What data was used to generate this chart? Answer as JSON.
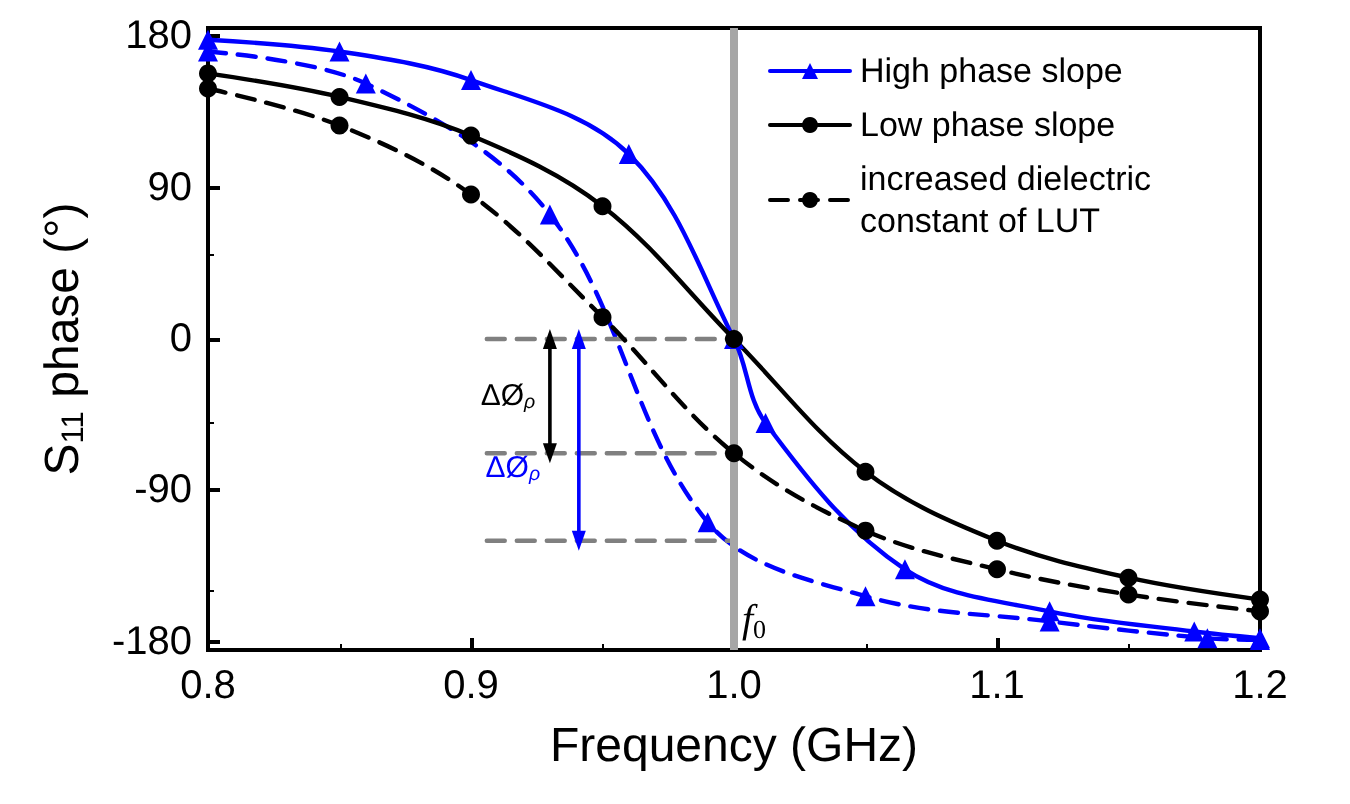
{
  "chart_data": {
    "type": "line",
    "xlabel": "Frequency (GHz)",
    "ylabel": "S$_{11}$ phase (°)",
    "xlim": [
      0.8,
      1.2
    ],
    "xticks": [
      0.8,
      0.9,
      {
        "value": 1,
        "label": "1.0"
      },
      1.1,
      1.2
    ],
    "ylim": [
      -185,
      185
    ],
    "yticks": [
      -180,
      -90,
      0,
      90,
      180
    ],
    "grid": false,
    "legend": "top right",
    "series": [
      {
        "name": "High phase slope",
        "color": "#0000ff",
        "marker": "triangle",
        "line_style": "solid",
        "x": [
          0.8,
          0.85,
          0.9,
          0.96,
          1.0,
          1.012,
          1.065,
          1.12,
          1.175,
          1.2
        ],
        "values": [
          178,
          171,
          154,
          110,
          0,
          -50,
          -137,
          -162,
          -174,
          -178
        ]
      },
      {
        "name": "Low phase slope",
        "color": "#000000",
        "marker": "circle",
        "line_style": "solid",
        "x": [
          0.8,
          0.85,
          0.9,
          0.95,
          1.0,
          1.05,
          1.1,
          1.15,
          1.2
        ],
        "values": [
          158,
          144,
          121,
          79,
          0,
          -79,
          -120,
          -142,
          -155
        ]
      },
      {
        "name": "increased dielectric constant of LUT",
        "color": "#000000",
        "marker": "circle",
        "line_style": "dashed",
        "x": [
          0.8,
          0.85,
          0.9,
          0.95,
          1.0,
          1.05,
          1.1,
          1.15,
          1.2
        ],
        "values": [
          149,
          127,
          86,
          13,
          -68,
          -114,
          -137,
          -152,
          -162
        ]
      },
      {
        "color": "#0000ff",
        "marker": "triangle",
        "line_style": "dashed",
        "x": [
          0.8,
          0.86,
          0.93,
          0.99,
          1.05,
          1.12,
          1.18,
          1.2
        ],
        "values": [
          171,
          152,
          74,
          -109,
          -153,
          -168,
          -178,
          -179
        ]
      },
      {
        "color": "#808080",
        "marker": "none",
        "line_style": "dashed",
        "x": [
          0.906,
          1.0
        ],
        "values": [
          0,
          0
        ]
      },
      {
        "color": "#808080",
        "marker": "none",
        "line_style": "dashed",
        "x": [
          0.906,
          1.0
        ],
        "values": [
          -68,
          -68
        ]
      },
      {
        "color": "#808080",
        "marker": "none",
        "line_style": "dashed",
        "x": [
          0.906,
          1.0
        ],
        "values": [
          -120,
          -120
        ]
      },
      {
        "color": "#000000",
        "marker": "triangle",
        "line_style": "solid",
        "x": [
          0.93,
          0.93
        ],
        "values": [
          0,
          -68
        ]
      },
      {
        "color": "#0000ff",
        "marker": "triangle",
        "line_style": "solid",
        "x": [
          0.941,
          0.941
        ],
        "values": [
          0,
          -120
        ]
      }
    ],
    "ref_lines": [
      {
        "axis": "x",
        "value": 1.0,
        "label": "f$_{0}$",
        "color": "#a6a6a6"
      }
    ],
    "annotations": [
      "ΔØ$_{ρ}$",
      "ΔØ$_{ρ}$"
    ]
  }
}
